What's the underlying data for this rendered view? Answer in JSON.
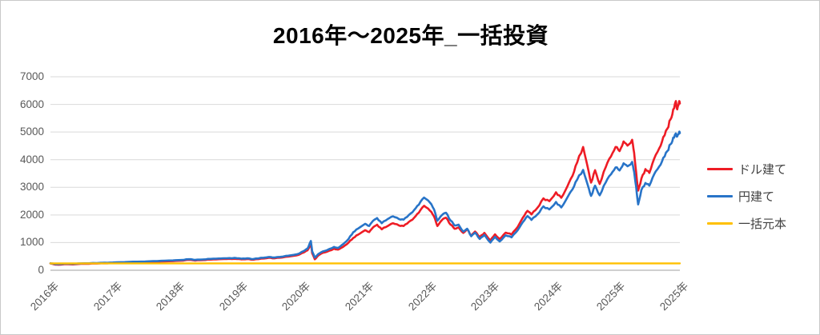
{
  "page": {
    "background": "#ffffff",
    "border_color": "#c9c9c9"
  },
  "title": {
    "text": "2016年～2025年_一括投資"
  },
  "legend": {
    "items": [
      {
        "label": "ドル建て",
        "color": "#ee1c25"
      },
      {
        "label": "円建て",
        "color": "#2874c8"
      },
      {
        "label": "一括元本",
        "color": "#ffc000"
      }
    ]
  },
  "chart_data": {
    "type": "line",
    "title": "2016年～2025年_一括投資",
    "grid": true,
    "gridline_color": "#d9d9d9",
    "axis_line_color": "#bfbfbf",
    "tick_label_color": "#595959",
    "legend_position": "right",
    "x_axis": {
      "range": [
        2016.0,
        2025.5
      ],
      "tick_labels": [
        "2016年",
        "2017年",
        "2018年",
        "2019年",
        "2020年",
        "2021年",
        "2022年",
        "2023年",
        "2024年",
        "2025年",
        "2025年"
      ]
    },
    "y_axis": {
      "range": [
        0,
        7000
      ],
      "ticks": [
        0,
        1000,
        2000,
        3000,
        4000,
        5000,
        6000,
        7000
      ],
      "tick_labels": [
        "0",
        "1000",
        "2000",
        "3000",
        "4000",
        "5000",
        "6000",
        "7000"
      ]
    },
    "series": [
      {
        "name": "ドル建て",
        "color": "#ee1c25",
        "points": [
          [
            2016.0,
            245
          ],
          [
            2016.06,
            210
          ],
          [
            2016.12,
            200
          ],
          [
            2016.22,
            222
          ],
          [
            2016.34,
            212
          ],
          [
            2016.46,
            232
          ],
          [
            2016.64,
            245
          ],
          [
            2016.82,
            255
          ],
          [
            2016.94,
            262
          ],
          [
            2017.12,
            278
          ],
          [
            2017.31,
            290
          ],
          [
            2017.49,
            302
          ],
          [
            2017.67,
            315
          ],
          [
            2017.85,
            330
          ],
          [
            2017.97,
            345
          ],
          [
            2018.09,
            375
          ],
          [
            2018.18,
            350
          ],
          [
            2018.3,
            368
          ],
          [
            2018.42,
            385
          ],
          [
            2018.54,
            398
          ],
          [
            2018.66,
            408
          ],
          [
            2018.78,
            415
          ],
          [
            2018.88,
            392
          ],
          [
            2018.97,
            405
          ],
          [
            2019.06,
            382
          ],
          [
            2019.18,
            420
          ],
          [
            2019.3,
            450
          ],
          [
            2019.38,
            432
          ],
          [
            2019.51,
            465
          ],
          [
            2019.63,
            505
          ],
          [
            2019.75,
            560
          ],
          [
            2019.82,
            640
          ],
          [
            2019.88,
            720
          ],
          [
            2019.93,
            950
          ],
          [
            2019.95,
            620
          ],
          [
            2019.99,
            395
          ],
          [
            2020.04,
            530
          ],
          [
            2020.11,
            630
          ],
          [
            2020.21,
            710
          ],
          [
            2020.28,
            780
          ],
          [
            2020.34,
            745
          ],
          [
            2020.42,
            850
          ],
          [
            2020.5,
            1000
          ],
          [
            2020.57,
            1170
          ],
          [
            2020.64,
            1280
          ],
          [
            2020.75,
            1450
          ],
          [
            2020.81,
            1380
          ],
          [
            2020.87,
            1550
          ],
          [
            2020.93,
            1650
          ],
          [
            2021.0,
            1480
          ],
          [
            2021.09,
            1600
          ],
          [
            2021.17,
            1700
          ],
          [
            2021.26,
            1620
          ],
          [
            2021.33,
            1600
          ],
          [
            2021.41,
            1750
          ],
          [
            2021.49,
            1900
          ],
          [
            2021.56,
            2080
          ],
          [
            2021.64,
            2330
          ],
          [
            2021.73,
            2150
          ],
          [
            2021.79,
            1950
          ],
          [
            2021.84,
            1600
          ],
          [
            2021.91,
            1820
          ],
          [
            2021.97,
            1900
          ],
          [
            2022.04,
            1650
          ],
          [
            2022.1,
            1500
          ],
          [
            2022.16,
            1550
          ],
          [
            2022.23,
            1350
          ],
          [
            2022.29,
            1480
          ],
          [
            2022.35,
            1250
          ],
          [
            2022.41,
            1400
          ],
          [
            2022.48,
            1200
          ],
          [
            2022.55,
            1350
          ],
          [
            2022.64,
            1080
          ],
          [
            2022.71,
            1300
          ],
          [
            2022.78,
            1130
          ],
          [
            2022.87,
            1360
          ],
          [
            2022.96,
            1290
          ],
          [
            2023.05,
            1560
          ],
          [
            2023.13,
            1900
          ],
          [
            2023.2,
            2150
          ],
          [
            2023.26,
            2020
          ],
          [
            2023.35,
            2260
          ],
          [
            2023.44,
            2600
          ],
          [
            2023.53,
            2500
          ],
          [
            2023.63,
            2820
          ],
          [
            2023.71,
            2620
          ],
          [
            2023.8,
            3020
          ],
          [
            2023.88,
            3420
          ],
          [
            2023.95,
            3900
          ],
          [
            2024.04,
            4460
          ],
          [
            2024.11,
            3720
          ],
          [
            2024.16,
            3170
          ],
          [
            2024.22,
            3620
          ],
          [
            2024.29,
            3120
          ],
          [
            2024.38,
            3720
          ],
          [
            2024.46,
            4120
          ],
          [
            2024.53,
            4460
          ],
          [
            2024.59,
            4310
          ],
          [
            2024.65,
            4660
          ],
          [
            2024.71,
            4510
          ],
          [
            2024.78,
            4720
          ],
          [
            2024.81,
            4250
          ],
          [
            2024.84,
            3550
          ],
          [
            2024.87,
            2880
          ],
          [
            2024.92,
            3320
          ],
          [
            2024.98,
            3660
          ],
          [
            2025.04,
            3520
          ],
          [
            2025.11,
            4020
          ],
          [
            2025.19,
            4420
          ],
          [
            2025.25,
            4820
          ],
          [
            2025.31,
            5120
          ],
          [
            2025.36,
            5460
          ],
          [
            2025.4,
            5820
          ],
          [
            2025.44,
            6120
          ],
          [
            2025.46,
            5820
          ],
          [
            2025.49,
            6120
          ],
          [
            2025.5,
            6030
          ]
        ]
      },
      {
        "name": "円建て",
        "color": "#2874c8",
        "points": [
          [
            2016.0,
            252
          ],
          [
            2016.06,
            228
          ],
          [
            2016.12,
            222
          ],
          [
            2016.22,
            238
          ],
          [
            2016.34,
            232
          ],
          [
            2016.46,
            248
          ],
          [
            2016.64,
            262
          ],
          [
            2016.82,
            272
          ],
          [
            2016.94,
            280
          ],
          [
            2017.12,
            296
          ],
          [
            2017.31,
            310
          ],
          [
            2017.49,
            325
          ],
          [
            2017.67,
            340
          ],
          [
            2017.85,
            355
          ],
          [
            2017.97,
            370
          ],
          [
            2018.09,
            400
          ],
          [
            2018.18,
            372
          ],
          [
            2018.3,
            390
          ],
          [
            2018.42,
            410
          ],
          [
            2018.54,
            425
          ],
          [
            2018.66,
            435
          ],
          [
            2018.78,
            445
          ],
          [
            2018.88,
            418
          ],
          [
            2018.97,
            430
          ],
          [
            2019.06,
            405
          ],
          [
            2019.18,
            450
          ],
          [
            2019.3,
            480
          ],
          [
            2019.38,
            460
          ],
          [
            2019.51,
            495
          ],
          [
            2019.63,
            540
          ],
          [
            2019.75,
            600
          ],
          [
            2019.82,
            690
          ],
          [
            2019.88,
            780
          ],
          [
            2019.93,
            1060
          ],
          [
            2019.95,
            690
          ],
          [
            2019.99,
            460
          ],
          [
            2020.04,
            580
          ],
          [
            2020.11,
            680
          ],
          [
            2020.21,
            770
          ],
          [
            2020.28,
            845
          ],
          [
            2020.34,
            805
          ],
          [
            2020.42,
            950
          ],
          [
            2020.5,
            1130
          ],
          [
            2020.57,
            1375
          ],
          [
            2020.64,
            1500
          ],
          [
            2020.75,
            1680
          ],
          [
            2020.81,
            1600
          ],
          [
            2020.87,
            1790
          ],
          [
            2020.93,
            1890
          ],
          [
            2021.0,
            1700
          ],
          [
            2021.09,
            1850
          ],
          [
            2021.17,
            1950
          ],
          [
            2021.26,
            1850
          ],
          [
            2021.33,
            1830
          ],
          [
            2021.41,
            2000
          ],
          [
            2021.49,
            2180
          ],
          [
            2021.56,
            2370
          ],
          [
            2021.64,
            2630
          ],
          [
            2021.73,
            2440
          ],
          [
            2021.79,
            2200
          ],
          [
            2021.84,
            1790
          ],
          [
            2021.91,
            2000
          ],
          [
            2021.97,
            2080
          ],
          [
            2022.04,
            1800
          ],
          [
            2022.1,
            1620
          ],
          [
            2022.16,
            1650
          ],
          [
            2022.23,
            1400
          ],
          [
            2022.29,
            1500
          ],
          [
            2022.35,
            1230
          ],
          [
            2022.41,
            1360
          ],
          [
            2022.48,
            1130
          ],
          [
            2022.55,
            1280
          ],
          [
            2022.64,
            1000
          ],
          [
            2022.71,
            1210
          ],
          [
            2022.78,
            1040
          ],
          [
            2022.87,
            1260
          ],
          [
            2022.96,
            1190
          ],
          [
            2023.05,
            1440
          ],
          [
            2023.13,
            1740
          ],
          [
            2023.2,
            1960
          ],
          [
            2023.26,
            1820
          ],
          [
            2023.35,
            2020
          ],
          [
            2023.44,
            2310
          ],
          [
            2023.53,
            2200
          ],
          [
            2023.63,
            2470
          ],
          [
            2023.71,
            2270
          ],
          [
            2023.8,
            2620
          ],
          [
            2023.88,
            2930
          ],
          [
            2023.95,
            3280
          ],
          [
            2024.04,
            3630
          ],
          [
            2024.11,
            3080
          ],
          [
            2024.16,
            2690
          ],
          [
            2024.22,
            3060
          ],
          [
            2024.29,
            2710
          ],
          [
            2024.38,
            3170
          ],
          [
            2024.46,
            3470
          ],
          [
            2024.53,
            3720
          ],
          [
            2024.59,
            3610
          ],
          [
            2024.65,
            3870
          ],
          [
            2024.71,
            3760
          ],
          [
            2024.78,
            3920
          ],
          [
            2024.81,
            3560
          ],
          [
            2024.84,
            3020
          ],
          [
            2024.87,
            2380
          ],
          [
            2024.92,
            2910
          ],
          [
            2024.98,
            3160
          ],
          [
            2025.04,
            3060
          ],
          [
            2025.11,
            3460
          ],
          [
            2025.19,
            3760
          ],
          [
            2025.25,
            4070
          ],
          [
            2025.31,
            4310
          ],
          [
            2025.36,
            4560
          ],
          [
            2025.4,
            4800
          ],
          [
            2025.44,
            4950
          ],
          [
            2025.46,
            4840
          ],
          [
            2025.49,
            5010
          ],
          [
            2025.5,
            4960
          ]
        ]
      },
      {
        "name": "一括元本",
        "color": "#ffc000",
        "points": [
          [
            2016.0,
            250
          ],
          [
            2025.5,
            250
          ]
        ]
      }
    ]
  }
}
